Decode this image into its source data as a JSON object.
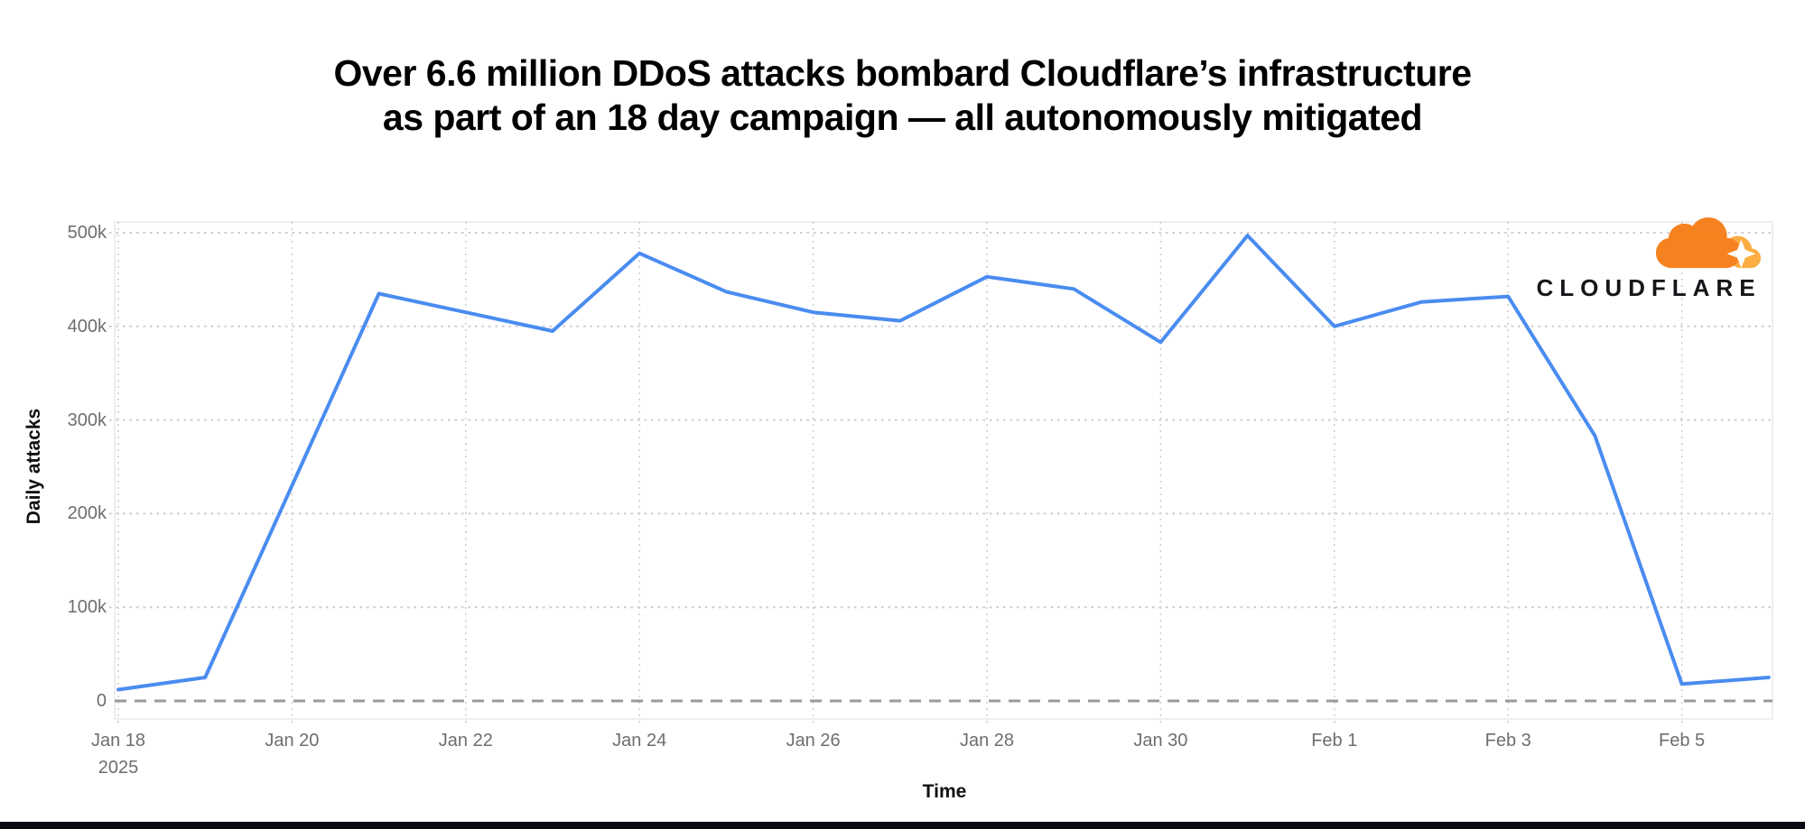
{
  "header": {
    "title_line1": "Over 6.6 million DDoS attacks bombard Cloudflare’s infrastructure",
    "title_line2": "as part of an 18 day campaign — all autonomously mitigated"
  },
  "branding": {
    "wordmark": "CLOUDFLARE",
    "icon": "cloudflare-cloud-icon",
    "colors": {
      "cloud_main": "#f6821f",
      "cloud_light": "#fbad41",
      "wordmark_text": "#16161a"
    }
  },
  "chart_data": {
    "type": "line",
    "title": "",
    "xlabel": "Time",
    "ylabel": "Daily attacks",
    "x": [
      "Jan 18",
      "Jan 19",
      "Jan 20",
      "Jan 21",
      "Jan 22",
      "Jan 23",
      "Jan 24",
      "Jan 25",
      "Jan 26",
      "Jan 27",
      "Jan 28",
      "Jan 29",
      "Jan 30",
      "Jan 31",
      "Feb 1",
      "Feb 2",
      "Feb 3",
      "Feb 4",
      "Feb 5",
      "Feb 6"
    ],
    "values": [
      12000,
      25000,
      230000,
      435000,
      415000,
      395000,
      478000,
      437000,
      415000,
      406000,
      453000,
      440000,
      383000,
      497000,
      400000,
      426000,
      432000,
      283000,
      18000,
      25000
    ],
    "x_ticks": [
      {
        "label": "Jan 18",
        "sub": "2025",
        "day_index": 0
      },
      {
        "label": "Jan 20",
        "day_index": 2
      },
      {
        "label": "Jan 22",
        "day_index": 4
      },
      {
        "label": "Jan 24",
        "day_index": 6
      },
      {
        "label": "Jan 26",
        "day_index": 8
      },
      {
        "label": "Jan 28",
        "day_index": 10
      },
      {
        "label": "Jan 30",
        "day_index": 12
      },
      {
        "label": "Feb 1",
        "day_index": 14
      },
      {
        "label": "Feb 3",
        "day_index": 16
      },
      {
        "label": "Feb 5",
        "day_index": 18
      }
    ],
    "y_ticks": [
      {
        "label": "0",
        "value": 0
      },
      {
        "label": "100k",
        "value": 100000
      },
      {
        "label": "200k",
        "value": 200000
      },
      {
        "label": "300k",
        "value": 300000
      },
      {
        "label": "400k",
        "value": 400000
      },
      {
        "label": "500k",
        "value": 500000
      }
    ],
    "ylim": [
      0,
      500000
    ],
    "grid": "dotted",
    "legend": "none",
    "zero_line": "dashed",
    "colors": {
      "line": "#4a8cf0",
      "grid": "#cccccc",
      "zero_line": "#9a9a9a",
      "border": "#e8e8e8",
      "tick_text": "#6e6e6e"
    }
  },
  "footer": {
    "bar_color": "#0a0a14"
  }
}
